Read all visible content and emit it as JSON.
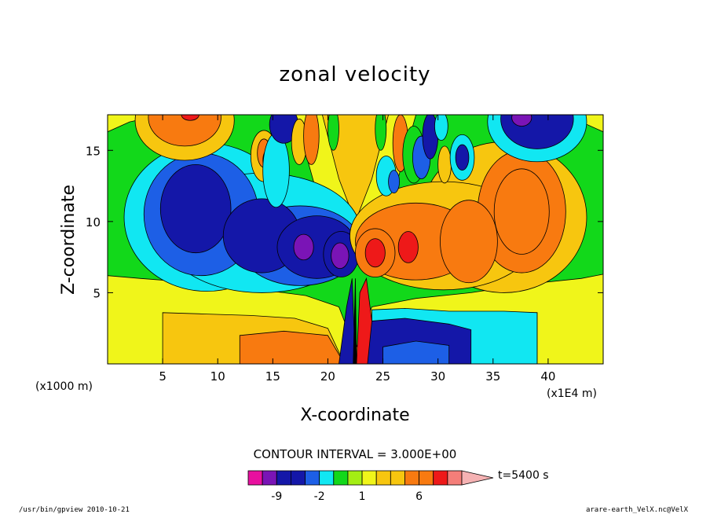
{
  "chart_data": {
    "type": "heatmap",
    "title": "zonal velocity",
    "xlabel": "X-coordinate",
    "ylabel": "Z-coordinate",
    "x_unit": "(x1E4 m)",
    "y_unit": "(x1000 m)",
    "xlim": [
      0,
      45
    ],
    "ylim": [
      0,
      17.5
    ],
    "x_ticks": [
      5,
      10,
      15,
      20,
      25,
      30,
      35,
      40
    ],
    "y_ticks": [
      5,
      10,
      15
    ],
    "x_tick_labels": [
      "5",
      "10",
      "15",
      "20",
      "25",
      "30",
      "35",
      "40"
    ],
    "y_tick_labels": [
      "5",
      "10",
      "15"
    ],
    "contour_interval_label": "CONTOUR INTERVAL = 3.000E+00",
    "time_label": "t=5400 s",
    "colorbar": {
      "bins": [
        {
          "upper": -12,
          "color": "#e8109f"
        },
        {
          "upper": -9,
          "color": "#7a14b6"
        },
        {
          "upper": -6,
          "color": "#1417a8"
        },
        {
          "upper": -3,
          "color": "#1417a8"
        },
        {
          "upper": -2,
          "color": "#1d5fe6"
        },
        {
          "upper": -1,
          "color": "#11e7f2"
        },
        {
          "upper": 0,
          "color": "#12d81a"
        },
        {
          "upper": 1,
          "color": "#a4ee14"
        },
        {
          "upper": 2,
          "color": "#f0f51a"
        },
        {
          "upper": 3,
          "color": "#f7c60f"
        },
        {
          "upper": 4,
          "color": "#f7c60f"
        },
        {
          "upper": 6,
          "color": "#f87a10"
        },
        {
          "upper": 9,
          "color": "#f87a10"
        },
        {
          "upper": 12,
          "color": "#ee1919"
        },
        {
          "upper": 15,
          "color": "#f47e79"
        },
        {
          "upper": null,
          "color": "#f5b2b3"
        }
      ],
      "tick_labels": [
        "-9",
        "-2",
        "1",
        "6"
      ],
      "tick_values": [
        -9,
        -2,
        1,
        6
      ]
    },
    "grid": false
  },
  "footer": {
    "left": "/usr/bin/gpview  2010-10-21",
    "right": "arare-earth_VelX.nc@VelX"
  }
}
